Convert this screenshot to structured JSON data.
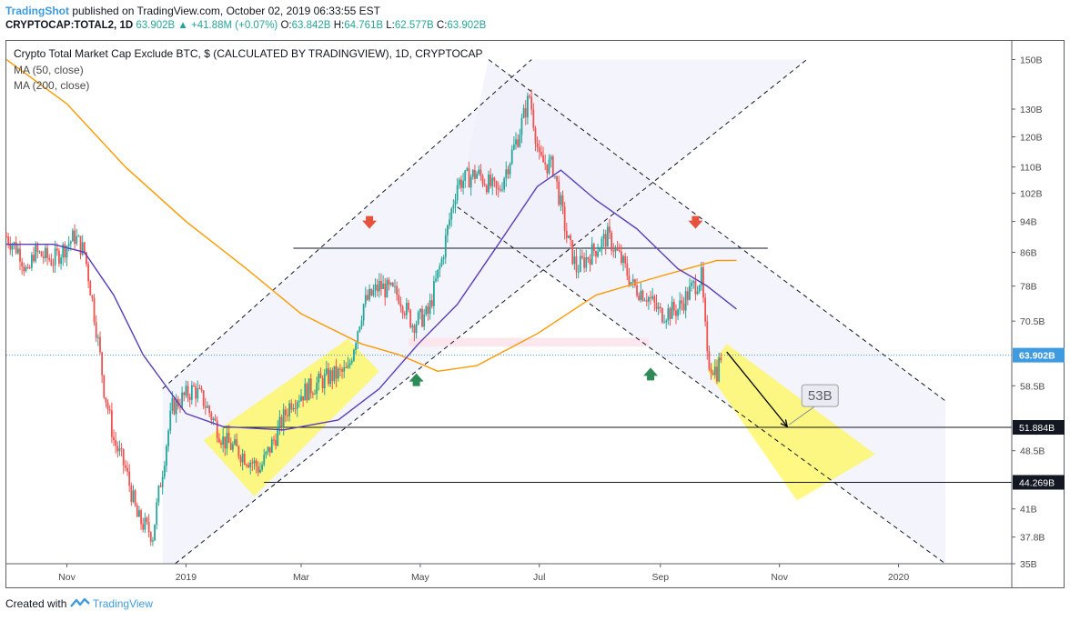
{
  "header": {
    "brand": "TradingShot",
    "published": "published on TradingView.com, October 02, 2019 06:33:55 EST",
    "symbol": "CRYPTOCAP:TOTAL2, 1D",
    "last": "63.902B",
    "change": "+41.88M (+0.07%)",
    "o_label": "O:",
    "o": "63.842B",
    "h_label": "H:",
    "h": "64.761B",
    "l_label": "L:",
    "l": "62.577B",
    "c_label": "C:",
    "c": "63.902B"
  },
  "legend": {
    "title": "Crypto Total Market Cap Exclude BTC, $ (CALCULATED BY TRADINGVIEW), 1D, CRYPTOCAP",
    "ma50": "MA (50, close)",
    "ma200": "MA (200, close)"
  },
  "footer": {
    "created_with": "Created with",
    "brand": "TradingView"
  },
  "chart_data": {
    "type": "candlestick",
    "title": "Crypto Total Market Cap Exclude BTC, $ (CALCULATED BY TRADINGVIEW), 1D, CRYPTOCAP",
    "y_scale": "log",
    "ylim": [
      35,
      155
    ],
    "y_ticks": [
      "150B",
      "130B",
      "120B",
      "110B",
      "102B",
      "94B",
      "86B",
      "78B",
      "70.5B",
      "63.902B",
      "58.5B",
      "51.884B",
      "48.5B",
      "44.269B",
      "41B",
      "37.8B",
      "35B"
    ],
    "y_tick_values": [
      150,
      130,
      120,
      110,
      102,
      94,
      86,
      78,
      70.5,
      63.902,
      58.5,
      51.884,
      48.5,
      44.269,
      41,
      37.8,
      35
    ],
    "x_ticks": [
      "Nov",
      "2019",
      "Mar",
      "May",
      "Jul",
      "Sep",
      "Nov",
      "2020"
    ],
    "x_tick_dates": [
      "2018-11-01",
      "2019-01-01",
      "2019-03-01",
      "2019-05-01",
      "2019-07-01",
      "2019-09-01",
      "2019-11-01",
      "2020-01-01"
    ],
    "xlim": [
      "2018-10-01",
      "2020-02-28"
    ],
    "price_path": [
      [
        "2018-10-01",
        90
      ],
      [
        "2018-10-08",
        86
      ],
      [
        "2018-10-12",
        80
      ],
      [
        "2018-10-15",
        86
      ],
      [
        "2018-10-25",
        84
      ],
      [
        "2018-11-05",
        90
      ],
      [
        "2018-11-10",
        86
      ],
      [
        "2018-11-15",
        72
      ],
      [
        "2018-11-20",
        58
      ],
      [
        "2018-11-25",
        50
      ],
      [
        "2018-12-01",
        46
      ],
      [
        "2018-12-07",
        40
      ],
      [
        "2018-12-15",
        38
      ],
      [
        "2018-12-20",
        46
      ],
      [
        "2018-12-25",
        55
      ],
      [
        "2019-01-05",
        58
      ],
      [
        "2019-01-10",
        56
      ],
      [
        "2019-01-20",
        50
      ],
      [
        "2019-01-30",
        48
      ],
      [
        "2019-02-08",
        46
      ],
      [
        "2019-02-15",
        50
      ],
      [
        "2019-02-24",
        56
      ],
      [
        "2019-03-05",
        58
      ],
      [
        "2019-03-15",
        60
      ],
      [
        "2019-03-25",
        61
      ],
      [
        "2019-04-02",
        74
      ],
      [
        "2019-04-10",
        78
      ],
      [
        "2019-04-20",
        76
      ],
      [
        "2019-04-27",
        70
      ],
      [
        "2019-05-05",
        72
      ],
      [
        "2019-05-12",
        84
      ],
      [
        "2019-05-20",
        105
      ],
      [
        "2019-05-30",
        108
      ],
      [
        "2019-06-10",
        102
      ],
      [
        "2019-06-20",
        120
      ],
      [
        "2019-06-26",
        135
      ],
      [
        "2019-07-01",
        112
      ],
      [
        "2019-07-08",
        110
      ],
      [
        "2019-07-15",
        90
      ],
      [
        "2019-07-20",
        82
      ],
      [
        "2019-07-28",
        86
      ],
      [
        "2019-08-05",
        90
      ],
      [
        "2019-08-12",
        84
      ],
      [
        "2019-08-18",
        78
      ],
      [
        "2019-08-25",
        76
      ],
      [
        "2019-09-01",
        72
      ],
      [
        "2019-09-10",
        73
      ],
      [
        "2019-09-18",
        78
      ],
      [
        "2019-09-22",
        80
      ],
      [
        "2019-09-25",
        63
      ],
      [
        "2019-09-30",
        61
      ],
      [
        "2019-10-02",
        63.9
      ]
    ],
    "ma50": [
      [
        "2018-10-01",
        88
      ],
      [
        "2018-10-25",
        88
      ],
      [
        "2018-11-10",
        86
      ],
      [
        "2018-11-25",
        76
      ],
      [
        "2018-12-10",
        64
      ],
      [
        "2019-01-01",
        54
      ],
      [
        "2019-01-20",
        52
      ],
      [
        "2019-02-20",
        51.5
      ],
      [
        "2019-03-20",
        53
      ],
      [
        "2019-04-10",
        58
      ],
      [
        "2019-04-30",
        66
      ],
      [
        "2019-05-20",
        74
      ],
      [
        "2019-06-10",
        88
      ],
      [
        "2019-06-30",
        104
      ],
      [
        "2019-07-12",
        109
      ],
      [
        "2019-07-30",
        100
      ],
      [
        "2019-08-20",
        92
      ],
      [
        "2019-09-10",
        82
      ],
      [
        "2019-09-25",
        78
      ],
      [
        "2019-10-10",
        73
      ]
    ],
    "ma200": [
      [
        "2018-10-01",
        150
      ],
      [
        "2018-11-01",
        132
      ],
      [
        "2018-12-01",
        110
      ],
      [
        "2019-01-01",
        94
      ],
      [
        "2019-02-01",
        82
      ],
      [
        "2019-03-01",
        72
      ],
      [
        "2019-04-01",
        66
      ],
      [
        "2019-04-20",
        64
      ],
      [
        "2019-05-10",
        61
      ],
      [
        "2019-05-30",
        62
      ],
      [
        "2019-06-30",
        68
      ],
      [
        "2019-07-30",
        76
      ],
      [
        "2019-08-30",
        80
      ],
      [
        "2019-09-30",
        84
      ],
      [
        "2019-10-10",
        84
      ]
    ],
    "levels": [
      {
        "value": 87,
        "from": "2019-02-25",
        "to": "2019-10-26",
        "color": "#131722"
      },
      {
        "value": 51.884,
        "from": "2019-01-20",
        "to": "2020-02-28",
        "color": "#131722",
        "label": "51.884B"
      },
      {
        "value": 44.269,
        "from": "2019-02-10",
        "to": "2020-02-28",
        "color": "#131722",
        "label": "44.269B"
      }
    ],
    "current_price": {
      "value": 63.902,
      "label": "63.902B",
      "color": "#3e9be0"
    },
    "channels": [
      {
        "lower": [
          [
            "2018-12-20",
            34
          ],
          [
            "2019-11-15",
            150
          ]
        ],
        "upper": [
          [
            "2018-12-20",
            58
          ],
          [
            "2019-06-27",
            150
          ]
        ]
      },
      {
        "upper": [
          [
            "2019-06-05",
            150
          ],
          [
            "2020-01-25",
            56
          ]
        ],
        "lower": [
          [
            "2019-05-20",
            98
          ],
          [
            "2020-01-25",
            35
          ]
        ]
      }
    ],
    "yellow_boxes": [
      {
        "corners": [
          [
            "2019-01-10",
            50
          ],
          [
            "2019-03-25",
            67
          ],
          [
            "2019-04-10",
            61
          ],
          [
            "2019-02-05",
            42.5
          ]
        ]
      },
      {
        "corners": [
          [
            "2019-09-25",
            61
          ],
          [
            "2019-10-05",
            66
          ],
          [
            "2019-12-20",
            48
          ],
          [
            "2019-11-10",
            42
          ]
        ]
      }
    ],
    "arrows_down": [
      [
        "2019-04-05",
        93
      ],
      [
        "2019-09-19",
        93
      ]
    ],
    "arrows_up": [
      [
        "2019-04-29",
        60
      ],
      [
        "2019-08-27",
        61
      ]
    ],
    "target": {
      "label": "53B",
      "from": [
        "2019-10-05",
        64.5
      ],
      "to": [
        "2019-11-05",
        52
      ]
    },
    "pink_zone": {
      "from": "2019-04-25",
      "to": "2019-08-26",
      "low": 65.5,
      "high": 67.2
    }
  }
}
